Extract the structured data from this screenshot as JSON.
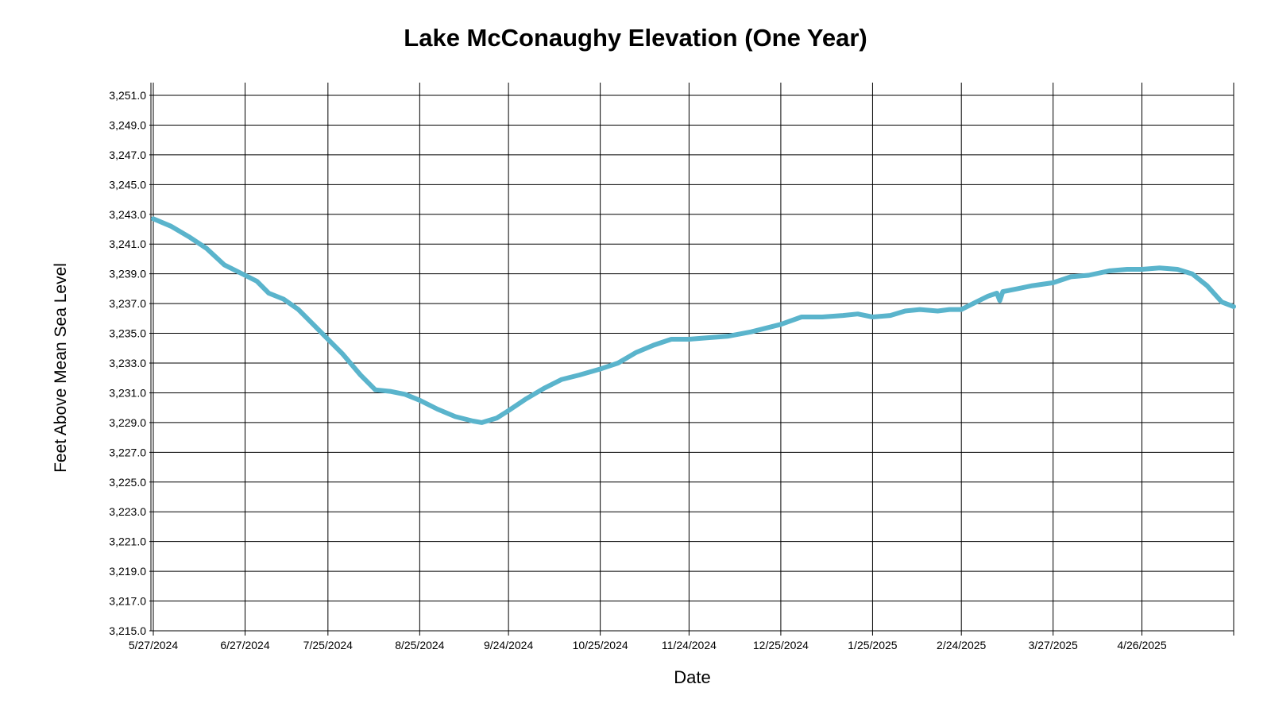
{
  "chart_data": {
    "type": "line",
    "title": "Lake McConaughy Elevation (One Year)",
    "xlabel": "Date",
    "ylabel": "Feet Above Mean Sea Level",
    "xlim": [
      "2024-05-27",
      "2025-05-27"
    ],
    "ylim": [
      3215.0,
      3252.0
    ],
    "grid": true,
    "x_ticks": [
      {
        "label": "5/27/2024",
        "date": "2024-05-27"
      },
      {
        "label": "6/27/2024",
        "date": "2024-06-27"
      },
      {
        "label": "7/25/2024",
        "date": "2024-07-25"
      },
      {
        "label": "8/25/2024",
        "date": "2024-08-25"
      },
      {
        "label": "9/24/2024",
        "date": "2024-09-24"
      },
      {
        "label": "10/25/2024",
        "date": "2024-10-25"
      },
      {
        "label": "11/24/2024",
        "date": "2024-11-24"
      },
      {
        "label": "12/25/2024",
        "date": "2024-12-25"
      },
      {
        "label": "1/25/2025",
        "date": "2025-01-25"
      },
      {
        "label": "2/24/2025",
        "date": "2025-02-24"
      },
      {
        "label": "3/27/2025",
        "date": "2025-03-27"
      },
      {
        "label": "4/26/2025",
        "date": "2025-04-26"
      }
    ],
    "y_ticks": [
      {
        "label": "3,215.0",
        "value": 3215.0
      },
      {
        "label": "3,217.0",
        "value": 3217.0
      },
      {
        "label": "3,219.0",
        "value": 3219.0
      },
      {
        "label": "3,221.0",
        "value": 3221.0
      },
      {
        "label": "3,223.0",
        "value": 3223.0
      },
      {
        "label": "3,225.0",
        "value": 3225.0
      },
      {
        "label": "3,227.0",
        "value": 3227.0
      },
      {
        "label": "3,229.0",
        "value": 3229.0
      },
      {
        "label": "3,231.0",
        "value": 3231.0
      },
      {
        "label": "3,233.0",
        "value": 3233.0
      },
      {
        "label": "3,235.0",
        "value": 3235.0
      },
      {
        "label": "3,237.0",
        "value": 3237.0
      },
      {
        "label": "3,239.0",
        "value": 3239.0
      },
      {
        "label": "3,241.0",
        "value": 3241.0
      },
      {
        "label": "3,243.0",
        "value": 3243.0
      },
      {
        "label": "3,245.0",
        "value": 3245.0
      },
      {
        "label": "3,247.0",
        "value": 3247.0
      },
      {
        "label": "3,249.0",
        "value": 3249.0
      },
      {
        "label": "3,251.0",
        "value": 3251.0
      }
    ],
    "series": [
      {
        "color": "#5ab4cc",
        "points": [
          {
            "x": "2024-05-27",
            "y": 3242.7
          },
          {
            "x": "2024-06-02",
            "y": 3242.2
          },
          {
            "x": "2024-06-08",
            "y": 3241.5
          },
          {
            "x": "2024-06-14",
            "y": 3240.7
          },
          {
            "x": "2024-06-20",
            "y": 3239.6
          },
          {
            "x": "2024-06-27",
            "y": 3238.9
          },
          {
            "x": "2024-07-01",
            "y": 3238.5
          },
          {
            "x": "2024-07-05",
            "y": 3237.7
          },
          {
            "x": "2024-07-10",
            "y": 3237.3
          },
          {
            "x": "2024-07-15",
            "y": 3236.6
          },
          {
            "x": "2024-07-20",
            "y": 3235.6
          },
          {
            "x": "2024-07-25",
            "y": 3234.6
          },
          {
            "x": "2024-07-30",
            "y": 3233.6
          },
          {
            "x": "2024-08-05",
            "y": 3232.2
          },
          {
            "x": "2024-08-10",
            "y": 3231.2
          },
          {
            "x": "2024-08-15",
            "y": 3231.1
          },
          {
            "x": "2024-08-20",
            "y": 3230.9
          },
          {
            "x": "2024-08-25",
            "y": 3230.5
          },
          {
            "x": "2024-08-31",
            "y": 3229.9
          },
          {
            "x": "2024-09-06",
            "y": 3229.4
          },
          {
            "x": "2024-09-12",
            "y": 3229.1
          },
          {
            "x": "2024-09-15",
            "y": 3229.0
          },
          {
            "x": "2024-09-20",
            "y": 3229.3
          },
          {
            "x": "2024-09-24",
            "y": 3229.8
          },
          {
            "x": "2024-09-30",
            "y": 3230.6
          },
          {
            "x": "2024-10-06",
            "y": 3231.3
          },
          {
            "x": "2024-10-12",
            "y": 3231.9
          },
          {
            "x": "2024-10-18",
            "y": 3232.2
          },
          {
            "x": "2024-10-25",
            "y": 3232.6
          },
          {
            "x": "2024-10-31",
            "y": 3233.0
          },
          {
            "x": "2024-11-06",
            "y": 3233.7
          },
          {
            "x": "2024-11-12",
            "y": 3234.2
          },
          {
            "x": "2024-11-18",
            "y": 3234.6
          },
          {
            "x": "2024-11-24",
            "y": 3234.6
          },
          {
            "x": "2024-11-30",
            "y": 3234.7
          },
          {
            "x": "2024-12-07",
            "y": 3234.8
          },
          {
            "x": "2024-12-15",
            "y": 3235.1
          },
          {
            "x": "2024-12-25",
            "y": 3235.6
          },
          {
            "x": "2025-01-01",
            "y": 3236.1
          },
          {
            "x": "2025-01-08",
            "y": 3236.1
          },
          {
            "x": "2025-01-15",
            "y": 3236.2
          },
          {
            "x": "2025-01-20",
            "y": 3236.3
          },
          {
            "x": "2025-01-25",
            "y": 3236.1
          },
          {
            "x": "2025-01-31",
            "y": 3236.2
          },
          {
            "x": "2025-02-05",
            "y": 3236.5
          },
          {
            "x": "2025-02-10",
            "y": 3236.6
          },
          {
            "x": "2025-02-16",
            "y": 3236.5
          },
          {
            "x": "2025-02-20",
            "y": 3236.6
          },
          {
            "x": "2025-02-24",
            "y": 3236.6
          },
          {
            "x": "2025-03-01",
            "y": 3237.1
          },
          {
            "x": "2025-03-05",
            "y": 3237.5
          },
          {
            "x": "2025-03-08",
            "y": 3237.7
          },
          {
            "x": "2025-03-09",
            "y": 3237.2
          },
          {
            "x": "2025-03-10",
            "y": 3237.8
          },
          {
            "x": "2025-03-15",
            "y": 3238.0
          },
          {
            "x": "2025-03-20",
            "y": 3238.2
          },
          {
            "x": "2025-03-27",
            "y": 3238.4
          },
          {
            "x": "2025-04-02",
            "y": 3238.8
          },
          {
            "x": "2025-04-08",
            "y": 3238.9
          },
          {
            "x": "2025-04-15",
            "y": 3239.2
          },
          {
            "x": "2025-04-21",
            "y": 3239.3
          },
          {
            "x": "2025-04-26",
            "y": 3239.3
          },
          {
            "x": "2025-05-02",
            "y": 3239.4
          },
          {
            "x": "2025-05-08",
            "y": 3239.3
          },
          {
            "x": "2025-05-13",
            "y": 3239.0
          },
          {
            "x": "2025-05-18",
            "y": 3238.2
          },
          {
            "x": "2025-05-23",
            "y": 3237.1
          },
          {
            "x": "2025-05-27",
            "y": 3236.8
          }
        ]
      }
    ]
  }
}
